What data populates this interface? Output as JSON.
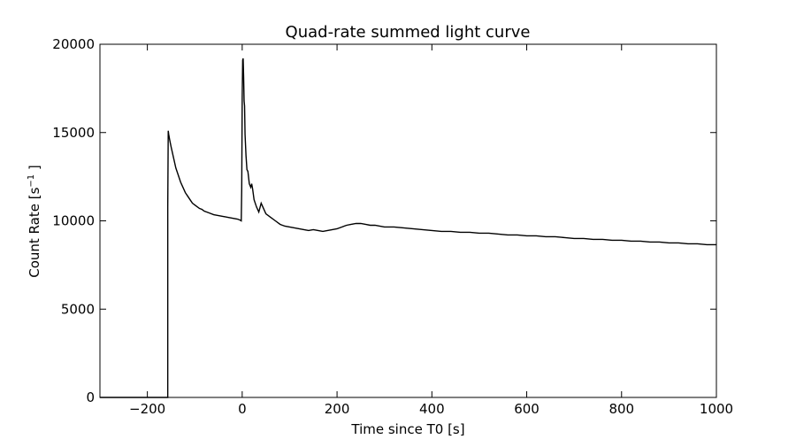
{
  "chart_data": {
    "type": "line",
    "title": "Quad-rate summed light curve",
    "xlabel": "Time since T0 [s]",
    "ylabel": {
      "prefix": "Count Rate [s",
      "superscript": "−1",
      "suffix": " ]"
    },
    "xlim": [
      -300,
      1000
    ],
    "ylim": [
      0,
      20000
    ],
    "xticks": [
      -200,
      0,
      200,
      400,
      600,
      800,
      1000
    ],
    "xtick_labels": [
      "−200",
      "0",
      "200",
      "400",
      "600",
      "800",
      "1000"
    ],
    "yticks": [
      0,
      5000,
      10000,
      15000,
      20000
    ],
    "ytick_labels": [
      "0",
      "5000",
      "10000",
      "15000",
      "20000"
    ],
    "grid": false,
    "line_color": "#000000",
    "series": [
      {
        "x": [
          -300,
          -157,
          -157,
          -156,
          -155,
          -153,
          -150,
          -145,
          -140,
          -135,
          -130,
          -125,
          -120,
          -115,
          -110,
          -105,
          -100,
          -95,
          -90,
          -85,
          -80,
          -70,
          -60,
          -50,
          -40,
          -30,
          -20,
          -10,
          -5,
          -2,
          -1,
          0,
          1,
          2,
          3,
          4,
          5,
          6,
          8,
          10,
          12,
          15,
          18,
          20,
          22,
          25,
          30,
          35,
          40,
          45,
          50,
          55,
          60,
          70,
          80,
          90,
          100,
          110,
          120,
          130,
          140,
          150,
          160,
          170,
          180,
          190,
          200,
          210,
          220,
          230,
          240,
          250,
          260,
          270,
          280,
          290,
          300,
          320,
          340,
          360,
          380,
          400,
          420,
          440,
          460,
          480,
          500,
          520,
          540,
          560,
          580,
          600,
          620,
          640,
          660,
          680,
          700,
          720,
          740,
          760,
          780,
          800,
          820,
          840,
          860,
          880,
          900,
          920,
          940,
          960,
          980,
          1000
        ],
        "y": [
          0,
          0,
          10800,
          15100,
          14900,
          14600,
          14200,
          13600,
          13000,
          12600,
          12200,
          11900,
          11600,
          11400,
          11200,
          11000,
          10900,
          10800,
          10700,
          10650,
          10550,
          10450,
          10350,
          10300,
          10250,
          10200,
          10150,
          10100,
          10050,
          10000,
          11800,
          17000,
          19100,
          19200,
          18200,
          16800,
          16500,
          14900,
          13700,
          12900,
          12800,
          12100,
          11900,
          12100,
          11800,
          11200,
          10800,
          10500,
          11000,
          10700,
          10400,
          10300,
          10200,
          10000,
          9800,
          9700,
          9650,
          9600,
          9550,
          9500,
          9450,
          9500,
          9450,
          9400,
          9450,
          9500,
          9550,
          9650,
          9750,
          9800,
          9850,
          9850,
          9800,
          9750,
          9750,
          9700,
          9650,
          9650,
          9600,
          9550,
          9500,
          9450,
          9400,
          9400,
          9350,
          9350,
          9300,
          9300,
          9250,
          9200,
          9200,
          9150,
          9150,
          9100,
          9100,
          9050,
          9000,
          9000,
          8950,
          8950,
          8900,
          8900,
          8850,
          8850,
          8800,
          8800,
          8750,
          8750,
          8700,
          8700,
          8650,
          8650
        ]
      }
    ]
  }
}
